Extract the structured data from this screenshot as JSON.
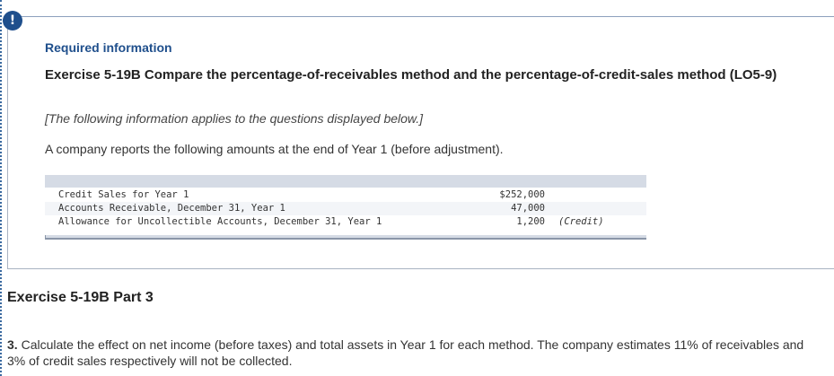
{
  "alert": {
    "icon": "exclamation-icon",
    "symbol": "!"
  },
  "info": {
    "required_label": "Required information",
    "exercise_title": "Exercise 5-19B Compare the percentage-of-receivables method and the percentage-of-credit-sales method (LO5-9)",
    "note": "[The following information applies to the questions displayed below.]",
    "intro": "A company reports the following amounts at the end of Year 1 (before adjustment)."
  },
  "table": {
    "rows": [
      {
        "label": "Credit Sales for Year 1",
        "amount": "$252,000",
        "note": ""
      },
      {
        "label": "Accounts Receivable, December 31, Year 1",
        "amount": "47,000",
        "note": ""
      },
      {
        "label": "Allowance for Uncollectible Accounts, December 31, Year 1",
        "amount": "1,200",
        "note": "(Credit)"
      }
    ]
  },
  "part": {
    "title": "Exercise 5-19B Part 3",
    "question_number": "3.",
    "question_text": "Calculate the effect on net income (before taxes) and total assets in Year 1 for each method. The company estimates 11% of receivables and 3% of credit sales respectively will not be collected."
  },
  "colors": {
    "accent": "#1f4f8c",
    "table_bar": "#d5dbe5"
  }
}
